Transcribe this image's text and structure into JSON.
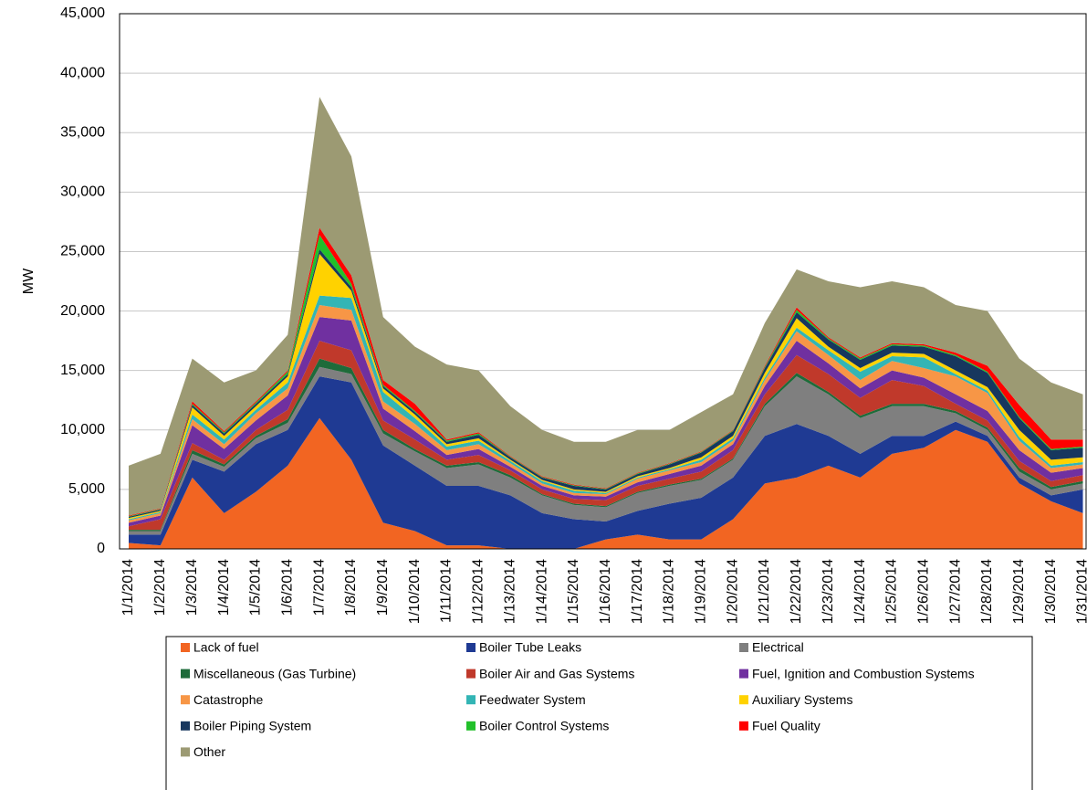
{
  "chart_data": {
    "type": "stacked-area",
    "y_label": "MW",
    "categories": [
      "1/1/2014",
      "1/2/2014",
      "1/3/2014",
      "1/4/2014",
      "1/5/2014",
      "1/6/2014",
      "1/7/2014",
      "1/8/2014",
      "1/9/2014",
      "1/10/2014",
      "1/11/2014",
      "1/12/2014",
      "1/13/2014",
      "1/14/2014",
      "1/15/2014",
      "1/16/2014",
      "1/17/2014",
      "1/18/2014",
      "1/19/2014",
      "1/20/2014",
      "1/21/2014",
      "1/22/2014",
      "1/23/2014",
      "1/24/2014",
      "1/25/2014",
      "1/26/2014",
      "1/27/2014",
      "1/28/2014",
      "1/29/2014",
      "1/30/2014",
      "1/31/2014"
    ],
    "ylim": [
      0,
      45000
    ],
    "yticks": [
      0,
      {
        "value": 5000,
        "label": "5,000"
      },
      {
        "value": 10000,
        "label": "10,000"
      },
      {
        "value": 15000,
        "label": "15,000"
      },
      {
        "value": 20000,
        "label": "20,000"
      },
      {
        "value": 25000,
        "label": "25,000"
      },
      {
        "value": 30000,
        "label": "30,000"
      },
      {
        "value": 35000,
        "label": "35,000"
      },
      {
        "value": 40000,
        "label": "40,000"
      },
      {
        "value": 45000,
        "label": "45,000"
      }
    ],
    "grid": true,
    "series": [
      {
        "name": "Lack of fuel",
        "color": "#f26522",
        "values": [
          500,
          300,
          6000,
          3000,
          4800,
          7000,
          11000,
          7500,
          2200,
          1500,
          300,
          300,
          0,
          0,
          0,
          800,
          1200,
          800,
          800,
          2500,
          5500,
          6000,
          7000,
          6000,
          8000,
          8500,
          10000,
          9000,
          5500,
          4000,
          3000
        ]
      },
      {
        "name": "Boiler Tube Leaks",
        "color": "#1f3a93",
        "values": [
          700,
          900,
          1500,
          3500,
          4000,
          3000,
          3500,
          6500,
          6500,
          5500,
          5000,
          5000,
          4500,
          3000,
          2500,
          1500,
          2000,
          3000,
          3500,
          3500,
          4000,
          4500,
          2500,
          2000,
          1500,
          1000,
          700,
          500,
          500,
          500,
          2000
        ]
      },
      {
        "name": "Electrical",
        "color": "#7f7f7f",
        "values": [
          300,
          300,
          500,
          400,
          500,
          600,
          800,
          700,
          1000,
          1200,
          1500,
          1800,
          1500,
          1500,
          1200,
          1200,
          1500,
          1500,
          1500,
          1500,
          2500,
          4000,
          3500,
          3000,
          2500,
          2500,
          700,
          500,
          500,
          500,
          500
        ]
      },
      {
        "name": "Miscellaneous (Gas Turbine)",
        "color": "#1e6b3a",
        "values": [
          100,
          100,
          300,
          200,
          200,
          300,
          700,
          500,
          300,
          200,
          200,
          200,
          200,
          100,
          100,
          100,
          100,
          100,
          100,
          100,
          200,
          300,
          200,
          200,
          200,
          200,
          200,
          200,
          300,
          200,
          200
        ]
      },
      {
        "name": "Boiler Air and Gas Systems",
        "color": "#c0392b",
        "values": [
          300,
          900,
          600,
          400,
          500,
          800,
          1500,
          1500,
          800,
          800,
          500,
          600,
          400,
          400,
          400,
          500,
          500,
          500,
          600,
          700,
          800,
          1500,
          1500,
          1500,
          2000,
          1500,
          600,
          600,
          600,
          500,
          500
        ]
      },
      {
        "name": "Fuel, Ignition and Combustion Systems",
        "color": "#7030a0",
        "values": [
          300,
          300,
          1500,
          900,
          800,
          1200,
          2000,
          2500,
          1000,
          700,
          400,
          500,
          300,
          300,
          300,
          300,
          300,
          400,
          500,
          500,
          700,
          1200,
          900,
          800,
          800,
          700,
          800,
          800,
          900,
          700,
          600
        ]
      },
      {
        "name": "Catastrophe",
        "color": "#f79646",
        "values": [
          200,
          200,
          500,
          400,
          600,
          600,
          1000,
          900,
          600,
          600,
          400,
          400,
          300,
          200,
          200,
          200,
          300,
          300,
          300,
          300,
          500,
          800,
          700,
          700,
          800,
          800,
          1500,
          1500,
          800,
          400,
          300
        ]
      },
      {
        "name": "Feedwater System",
        "color": "#33b5b5",
        "values": [
          100,
          100,
          400,
          400,
          300,
          500,
          800,
          1000,
          800,
          500,
          300,
          300,
          200,
          200,
          200,
          100,
          100,
          100,
          200,
          200,
          200,
          300,
          400,
          700,
          400,
          900,
          200,
          200,
          300,
          200,
          200
        ]
      },
      {
        "name": "Auxiliary Systems",
        "color": "#ffd200",
        "values": [
          100,
          100,
          600,
          300,
          300,
          500,
          3500,
          600,
          300,
          300,
          200,
          200,
          100,
          100,
          100,
          100,
          100,
          100,
          200,
          200,
          400,
          800,
          300,
          300,
          300,
          300,
          300,
          300,
          600,
          500,
          400
        ]
      },
      {
        "name": "Boiler Piping System",
        "color": "#17375e",
        "values": [
          100,
          100,
          200,
          200,
          200,
          200,
          400,
          300,
          200,
          200,
          200,
          300,
          200,
          200,
          300,
          200,
          200,
          300,
          400,
          400,
          400,
          500,
          600,
          700,
          600,
          600,
          1200,
          1200,
          1000,
          800,
          800
        ]
      },
      {
        "name": "Boiler Control Systems",
        "color": "#22c02a",
        "values": [
          50,
          50,
          100,
          100,
          100,
          200,
          1200,
          300,
          100,
          100,
          100,
          100,
          50,
          50,
          50,
          50,
          50,
          50,
          50,
          50,
          100,
          200,
          100,
          100,
          100,
          100,
          100,
          100,
          100,
          100,
          100
        ]
      },
      {
        "name": "Fuel Quality",
        "color": "#ff0000",
        "values": [
          50,
          50,
          200,
          100,
          100,
          100,
          600,
          700,
          400,
          600,
          100,
          100,
          50,
          50,
          50,
          50,
          50,
          50,
          50,
          50,
          100,
          200,
          100,
          100,
          100,
          100,
          200,
          500,
          1000,
          800,
          600
        ]
      },
      {
        "name": "Other",
        "color": "#9c9a73",
        "values": [
          4200,
          4600,
          3600,
          4100,
          2600,
          3000,
          11000,
          10000,
          5300,
          4800,
          6300,
          5200,
          4200,
          3900,
          3600,
          3900,
          3600,
          2800,
          3300,
          3000,
          3600,
          3200,
          4700,
          5900,
          5200,
          4800,
          4000,
          4600,
          3900,
          4800,
          3800
        ]
      }
    ]
  }
}
